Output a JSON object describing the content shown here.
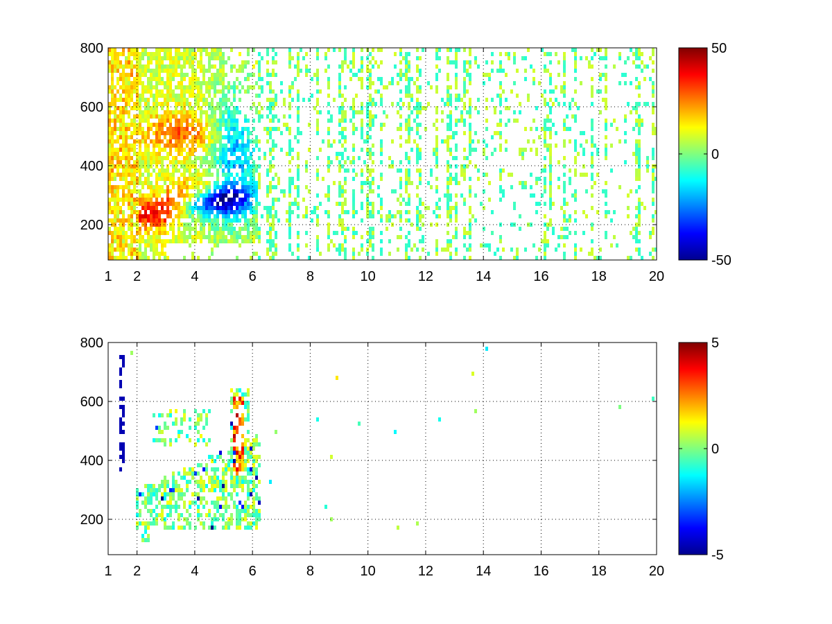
{
  "chart_data": [
    {
      "type": "heatmap",
      "title": "",
      "xlabel": "",
      "ylabel": "",
      "xlim": [
        1,
        20
      ],
      "ylim": [
        80,
        800
      ],
      "grid": true,
      "x_ticks": [
        1,
        2,
        4,
        6,
        8,
        10,
        12,
        14,
        16,
        18,
        20
      ],
      "x_tick_labels": [
        "1",
        "2",
        "4",
        "6",
        "8",
        "10",
        "12",
        "14",
        "16",
        "18",
        "20"
      ],
      "y_ticks": [
        200,
        400,
        600,
        800
      ],
      "y_tick_labels": [
        "200",
        "400",
        "600",
        "800"
      ],
      "colormap": "jet",
      "clim": [
        -50,
        50
      ],
      "colorbar_ticks": [
        -50,
        0,
        50
      ],
      "colorbar_tick_labels": [
        "-50",
        "0",
        "50"
      ],
      "features": [
        {
          "x": [
            2,
            6
          ],
          "y": [
            200,
            400
          ],
          "value": 40
        },
        {
          "x": [
            3.5,
            6
          ],
          "y": [
            220,
            330
          ],
          "value": -45
        },
        {
          "x": [
            2.5,
            4.5
          ],
          "y": [
            450,
            560
          ],
          "value": 30
        },
        {
          "x": [
            4.5,
            6
          ],
          "y": [
            400,
            650
          ],
          "value": -25
        },
        {
          "x": [
            1,
            20
          ],
          "y": [
            80,
            800
          ],
          "value": 0
        }
      ]
    },
    {
      "type": "heatmap",
      "title": "",
      "xlabel": "",
      "ylabel": "",
      "xlim": [
        1,
        20
      ],
      "ylim": [
        80,
        800
      ],
      "grid": true,
      "x_ticks": [
        1,
        2,
        4,
        6,
        8,
        10,
        12,
        14,
        16,
        18,
        20
      ],
      "x_tick_labels": [
        "1",
        "2",
        "4",
        "6",
        "8",
        "10",
        "12",
        "14",
        "16",
        "18",
        "20"
      ],
      "y_ticks": [
        200,
        400,
        600,
        800
      ],
      "y_tick_labels": [
        "200",
        "400",
        "600",
        "800"
      ],
      "colormap": "jet",
      "clim": [
        -5,
        5
      ],
      "colorbar_ticks": [
        -5,
        0,
        5
      ],
      "colorbar_tick_labels": [
        "-5",
        "0",
        "5"
      ],
      "features": [
        {
          "x": [
            2,
            6
          ],
          "y": [
            170,
            400
          ],
          "value": 0
        },
        {
          "x": [
            5.3,
            5.8
          ],
          "y": [
            350,
            600
          ],
          "value": 3
        },
        {
          "x": [
            2.5,
            4.5
          ],
          "y": [
            450,
            560
          ],
          "value": 0.5
        }
      ]
    }
  ]
}
